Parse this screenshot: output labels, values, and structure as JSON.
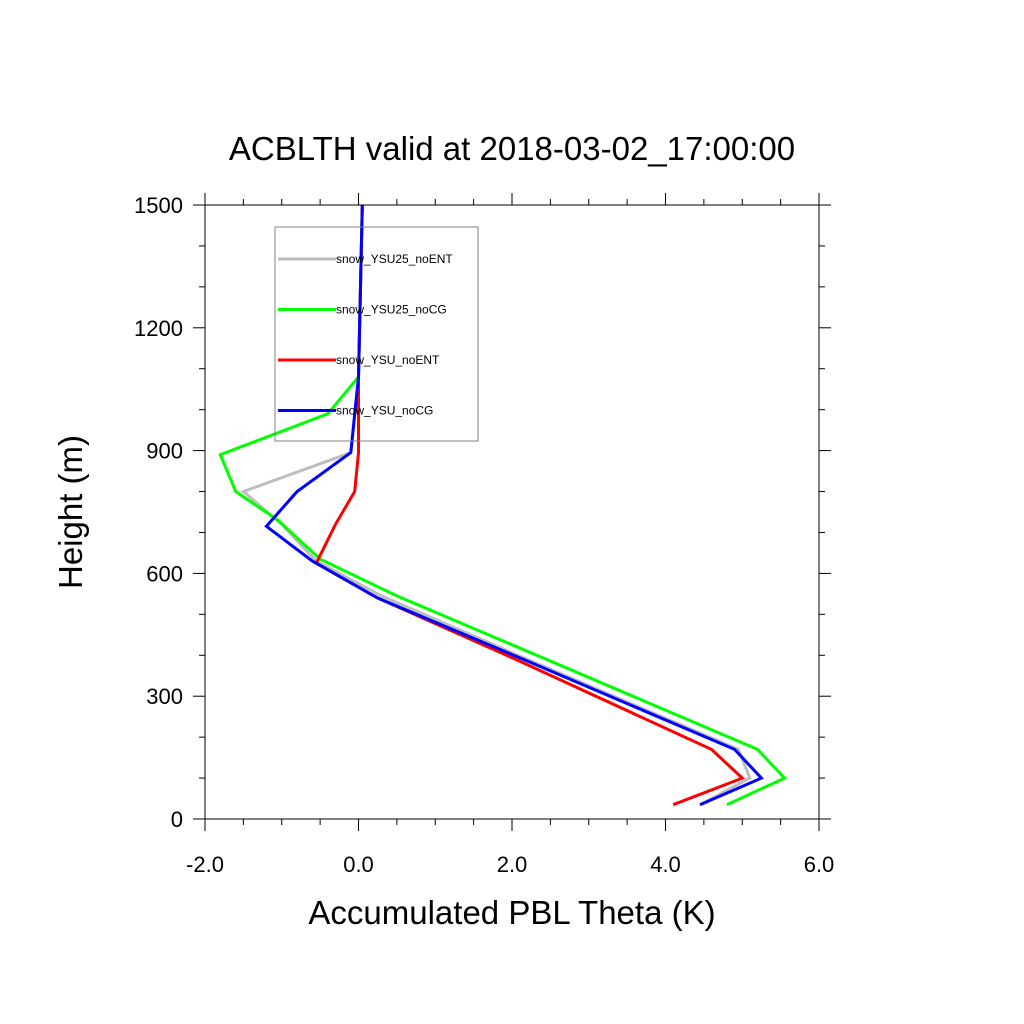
{
  "chart_data": {
    "type": "line",
    "title": "ACBLTH valid at 2018-03-02_17:00:00",
    "xlabel": "Accumulated PBL Theta (K)",
    "ylabel": "Height (m)",
    "xlim": [
      -2.0,
      6.0
    ],
    "ylim": [
      0,
      1500
    ],
    "xticks": [
      -2.0,
      0.0,
      2.0,
      4.0,
      6.0
    ],
    "xtick_labels": [
      "-2.0",
      "0.0",
      "2.0",
      "4.0",
      "6.0"
    ],
    "yticks": [
      0,
      300,
      600,
      900,
      1200,
      1500
    ],
    "ytick_labels": [
      "0",
      "300",
      "600",
      "900",
      "1200",
      "1500"
    ],
    "grid": false,
    "legend_position": "top-left",
    "series": [
      {
        "name": "snow_YSU25_noENT",
        "color": "#bdbdbd",
        "points": [
          [
            4.45,
            35
          ],
          [
            5.1,
            100
          ],
          [
            4.95,
            170
          ],
          [
            2.2,
            390
          ],
          [
            0.3,
            545
          ],
          [
            -0.55,
            630
          ],
          [
            -1.0,
            720
          ],
          [
            -1.5,
            800
          ],
          [
            -0.1,
            895
          ],
          [
            0.0,
            1080
          ],
          [
            0.05,
            1500
          ]
        ]
      },
      {
        "name": "snow_YSU25_noCG",
        "color": "#00ff00",
        "points": [
          [
            4.8,
            35
          ],
          [
            5.55,
            100
          ],
          [
            5.2,
            170
          ],
          [
            2.45,
            390
          ],
          [
            0.5,
            545
          ],
          [
            -0.5,
            635
          ],
          [
            -1.05,
            730
          ],
          [
            -1.6,
            800
          ],
          [
            -1.8,
            890
          ],
          [
            -0.4,
            990
          ],
          [
            0.0,
            1080
          ],
          [
            0.05,
            1500
          ]
        ]
      },
      {
        "name": "snow_YSU_noENT",
        "color": "#ff0000",
        "points": [
          [
            4.1,
            35
          ],
          [
            5.0,
            100
          ],
          [
            4.6,
            170
          ],
          [
            2.05,
            390
          ],
          [
            0.25,
            540
          ],
          [
            -0.55,
            625
          ],
          [
            -0.3,
            720
          ],
          [
            -0.05,
            800
          ],
          [
            0.0,
            895
          ],
          [
            0.0,
            1080
          ],
          [
            0.05,
            1500
          ]
        ]
      },
      {
        "name": "snow_YSU_noCG",
        "color": "#0000ff",
        "points": [
          [
            4.45,
            35
          ],
          [
            5.25,
            100
          ],
          [
            4.9,
            170
          ],
          [
            2.15,
            390
          ],
          [
            0.25,
            540
          ],
          [
            -0.6,
            630
          ],
          [
            -1.2,
            715
          ],
          [
            -0.8,
            800
          ],
          [
            -0.1,
            895
          ],
          [
            0.0,
            1080
          ],
          [
            0.05,
            1500
          ]
        ]
      }
    ]
  }
}
